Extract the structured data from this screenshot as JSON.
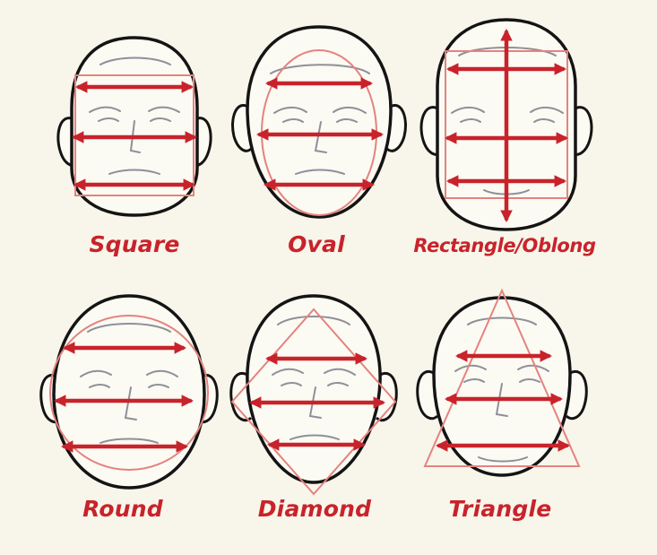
{
  "colors": {
    "background": "#f8f5ea",
    "outline": "#141414",
    "guide": "#e4837f",
    "arrow": "#c8232b",
    "label": "#c8232b",
    "feature": "#8e9099"
  },
  "faces": [
    {
      "label": "Square",
      "shape": "square"
    },
    {
      "label": "Oval",
      "shape": "oval"
    },
    {
      "label": "Rectangle/Oblong",
      "shape": "rectangle"
    },
    {
      "label": "Round",
      "shape": "round"
    },
    {
      "label": "Diamond",
      "shape": "diamond"
    },
    {
      "label": "Triangle",
      "shape": "triangle"
    }
  ]
}
